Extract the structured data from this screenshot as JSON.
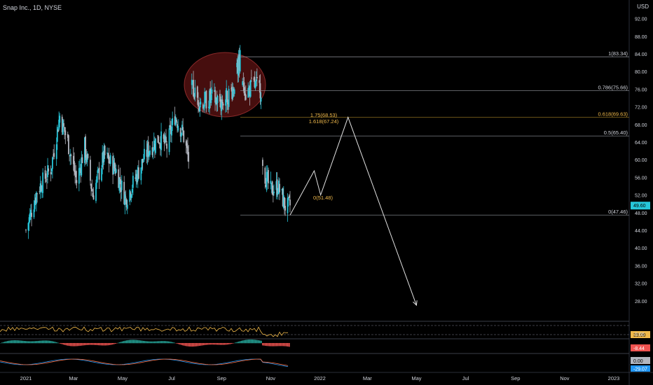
{
  "header": {
    "symbol_line": "Snap Inc., 1D, NYSE",
    "currency": "USD"
  },
  "colors": {
    "bg": "#000000",
    "up": "#26c6da",
    "down": "#b2b5be",
    "fib": "#9598a1",
    "fib_gold": "#f0b94b",
    "text": "#d1d4dc",
    "price_badge": "#26c6da",
    "projection": "#e0e0e0"
  },
  "chart_data": {
    "type": "candlestick",
    "title": "Snap Inc., 1D, NYSE",
    "ylabel": "USD",
    "ylim": [
      24,
      94
    ],
    "y_ticks": [
      "92.00",
      "88.00",
      "84.00",
      "80.00",
      "76.00",
      "72.00",
      "68.00",
      "64.00",
      "60.00",
      "56.00",
      "52.00",
      "48.00",
      "44.00",
      "40.00",
      "36.00",
      "32.00",
      "28.00"
    ],
    "x_ticks": [
      "2021",
      "Mar",
      "May",
      "Jul",
      "Sep",
      "Nov",
      "2022",
      "Mar",
      "May",
      "Jul",
      "Sep",
      "Nov",
      "2023"
    ],
    "last_price": "49.60",
    "price_path": [
      {
        "d": "2021-01-01",
        "v": 44
      },
      {
        "d": "2021-01-15",
        "v": 53
      },
      {
        "d": "2021-02-01",
        "v": 58
      },
      {
        "d": "2021-02-12",
        "v": 70
      },
      {
        "d": "2021-02-22",
        "v": 64
      },
      {
        "d": "2021-03-05",
        "v": 55
      },
      {
        "d": "2021-03-15",
        "v": 63
      },
      {
        "d": "2021-03-25",
        "v": 52
      },
      {
        "d": "2021-04-08",
        "v": 61
      },
      {
        "d": "2021-04-22",
        "v": 58
      },
      {
        "d": "2021-05-05",
        "v": 51
      },
      {
        "d": "2021-05-15",
        "v": 55
      },
      {
        "d": "2021-06-01",
        "v": 62
      },
      {
        "d": "2021-06-15",
        "v": 65
      },
      {
        "d": "2021-06-25",
        "v": 63
      },
      {
        "d": "2021-07-05",
        "v": 70
      },
      {
        "d": "2021-07-15",
        "v": 66
      },
      {
        "d": "2021-07-22",
        "v": 60
      },
      {
        "d": "2021-07-26",
        "v": 76
      },
      {
        "d": "2021-08-05",
        "v": 73
      },
      {
        "d": "2021-08-20",
        "v": 74
      },
      {
        "d": "2021-09-01",
        "v": 73
      },
      {
        "d": "2021-09-15",
        "v": 76
      },
      {
        "d": "2021-09-24",
        "v": 83
      },
      {
        "d": "2021-10-01",
        "v": 75
      },
      {
        "d": "2021-10-10",
        "v": 77
      },
      {
        "d": "2021-10-20",
        "v": 76
      },
      {
        "d": "2021-10-22",
        "v": 58
      },
      {
        "d": "2021-11-01",
        "v": 53
      },
      {
        "d": "2021-11-10",
        "v": 54
      },
      {
        "d": "2021-11-20",
        "v": 49
      },
      {
        "d": "2021-11-25",
        "v": 49.6
      }
    ],
    "fib_levels": [
      {
        "label": "1(83.34)",
        "value": 83.34,
        "highlight": false
      },
      {
        "label": "0.786(75.66)",
        "value": 75.66,
        "highlight": false
      },
      {
        "label": "0.618(69.63)",
        "value": 69.63,
        "highlight": true
      },
      {
        "label": "0.5(65.40)",
        "value": 65.4,
        "highlight": false
      },
      {
        "label": "0(47.46)",
        "value": 47.46,
        "highlight": false
      }
    ],
    "fib_ext_labels": [
      {
        "label": "1.75(68.53)",
        "value": 68.53
      },
      {
        "label": "1.618(67.24)",
        "value": 67.24
      }
    ],
    "wave_label": {
      "label": "0(51.48)",
      "value": 51.48
    },
    "projection": [
      {
        "d": "2021-11-25",
        "v": 47.46
      },
      {
        "d": "2021-12-25",
        "v": 57.5
      },
      {
        "d": "2022-01-02",
        "v": 52
      },
      {
        "d": "2022-02-05",
        "v": 69.63
      },
      {
        "d": "2022-05-01",
        "v": 27
      }
    ],
    "indicators": [
      {
        "name": "RSI",
        "value_label": "33.00"
      },
      {
        "name": "MACD histogram",
        "value_label": "-8.44",
        "zero_label": "0.00"
      },
      {
        "name": "Oscillator",
        "value_label": "0.00",
        "second_label": "-29.07"
      }
    ]
  }
}
